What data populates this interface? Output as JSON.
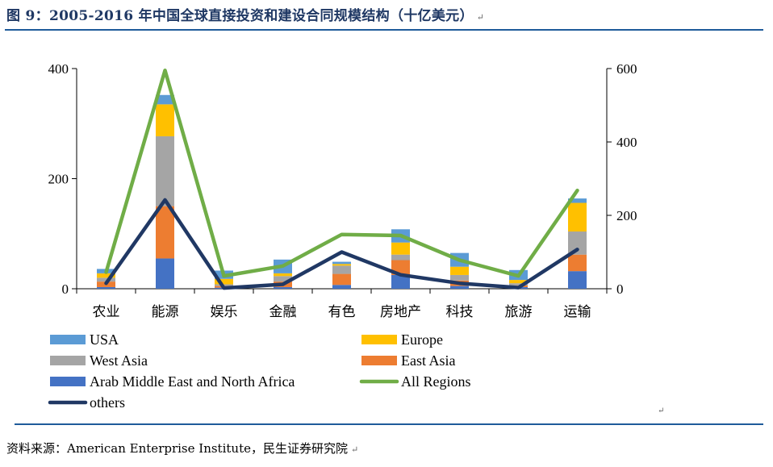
{
  "title": "图 9：2005-2016 年中国全球直接投资和建设合同规模结构（十亿美元）",
  "source": "资料来源：American Enterprise Institute，民生证券研究院",
  "chart_data": {
    "type": "bar",
    "stacked": true,
    "categories": [
      "农业",
      "能源",
      "娱乐",
      "金融",
      "有色",
      "房地产",
      "科技",
      "旅游",
      "运输"
    ],
    "left_axis": {
      "ylim": [
        0,
        400
      ],
      "ticks": [
        0,
        200,
        400
      ]
    },
    "right_axis": {
      "ylim": [
        0,
        600
      ],
      "ticks": [
        0,
        200,
        400,
        600
      ]
    },
    "bar_series": [
      {
        "name": "Arab Middle East and North Africa",
        "color": "#4472c4",
        "values": [
          3,
          55,
          2,
          3,
          7,
          25,
          5,
          3,
          32
        ]
      },
      {
        "name": "East Asia",
        "color": "#ed7d31",
        "values": [
          10,
          95,
          3,
          10,
          20,
          27,
          10,
          3,
          30
        ]
      },
      {
        "name": "West Asia",
        "color": "#a5a5a5",
        "values": [
          7,
          127,
          3,
          10,
          15,
          10,
          10,
          4,
          42
        ]
      },
      {
        "name": "Europe",
        "color": "#ffc000",
        "values": [
          8,
          58,
          10,
          5,
          3,
          22,
          15,
          6,
          52
        ]
      },
      {
        "name": "USA",
        "color": "#5b9bd5",
        "values": [
          8,
          17,
          15,
          25,
          4,
          24,
          25,
          18,
          8
        ]
      }
    ],
    "line_series": [
      {
        "name": "All Regions",
        "color": "#70ad47",
        "axis": "right",
        "values": [
          45,
          595,
          35,
          62,
          148,
          145,
          78,
          35,
          268
        ]
      },
      {
        "name": "others",
        "color": "#203864",
        "axis": "right",
        "values": [
          15,
          242,
          2,
          12,
          100,
          38,
          15,
          3,
          107
        ]
      }
    ],
    "legend": [
      {
        "name": "USA",
        "kind": "bar",
        "color": "#5b9bd5"
      },
      {
        "name": "Europe",
        "kind": "bar",
        "color": "#ffc000"
      },
      {
        "name": "West Asia",
        "kind": "bar",
        "color": "#a5a5a5"
      },
      {
        "name": "East Asia",
        "kind": "bar",
        "color": "#ed7d31"
      },
      {
        "name": "Arab Middle East and North Africa",
        "kind": "bar",
        "color": "#4472c4"
      },
      {
        "name": "All Regions",
        "kind": "line",
        "color": "#70ad47"
      },
      {
        "name": "others",
        "kind": "line",
        "color": "#203864"
      }
    ],
    "legend_placement": "bottom",
    "grid": false
  }
}
